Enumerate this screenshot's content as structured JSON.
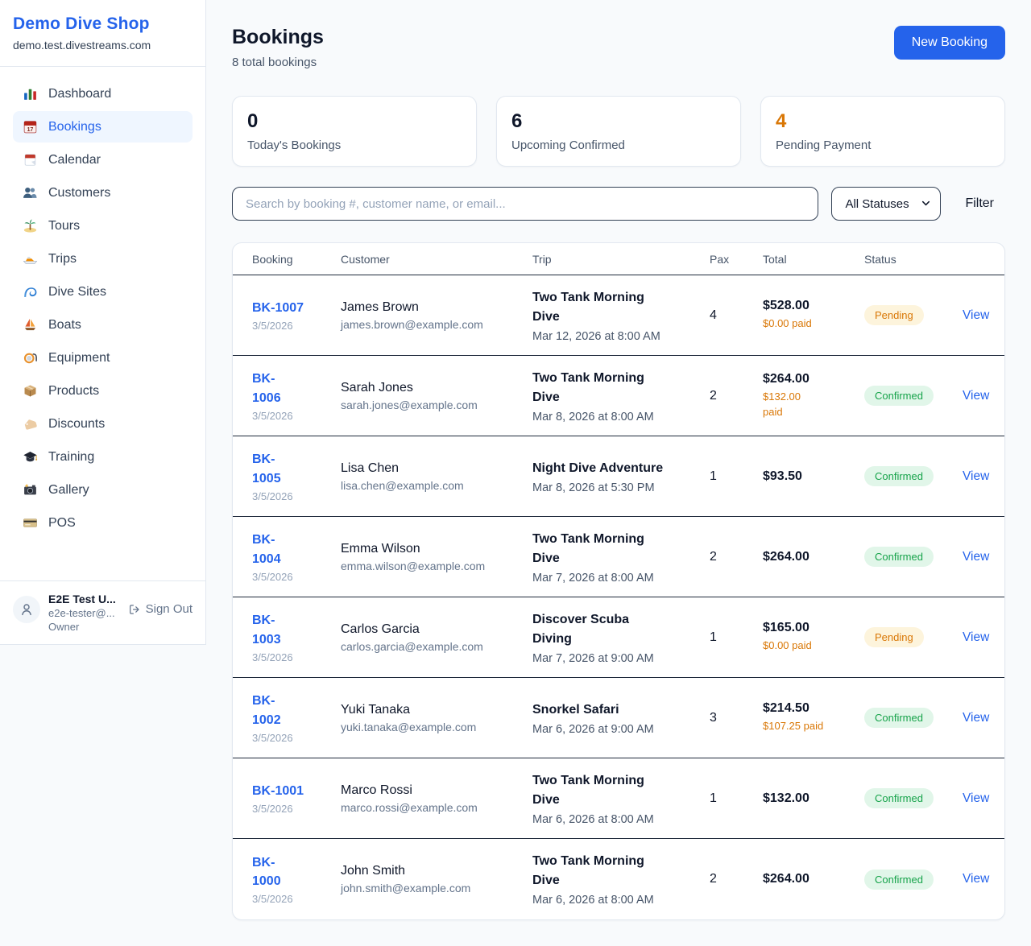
{
  "sidebar": {
    "shop_name": "Demo Dive Shop",
    "shop_domain": "demo.test.divestreams.com",
    "items": [
      {
        "key": "dashboard",
        "label": "Dashboard",
        "icon": "bar-chart-icon",
        "active": false
      },
      {
        "key": "bookings",
        "label": "Bookings",
        "icon": "bookings-calendar-icon",
        "active": true
      },
      {
        "key": "calendar",
        "label": "Calendar",
        "icon": "calendar-icon",
        "active": false
      },
      {
        "key": "customers",
        "label": "Customers",
        "icon": "people-icon",
        "active": false
      },
      {
        "key": "tours",
        "label": "Tours",
        "icon": "island-icon",
        "active": false
      },
      {
        "key": "trips",
        "label": "Trips",
        "icon": "speedboat-icon",
        "active": false
      },
      {
        "key": "dive-sites",
        "label": "Dive Sites",
        "icon": "wave-icon",
        "active": false
      },
      {
        "key": "boats",
        "label": "Boats",
        "icon": "sailboat-icon",
        "active": false
      },
      {
        "key": "equipment",
        "label": "Equipment",
        "icon": "diving-mask-icon",
        "active": false
      },
      {
        "key": "products",
        "label": "Products",
        "icon": "package-icon",
        "active": false
      },
      {
        "key": "discounts",
        "label": "Discounts",
        "icon": "tag-icon",
        "active": false
      },
      {
        "key": "training",
        "label": "Training",
        "icon": "graduation-cap-icon",
        "active": false
      },
      {
        "key": "gallery",
        "label": "Gallery",
        "icon": "camera-icon",
        "active": false
      },
      {
        "key": "pos",
        "label": "POS",
        "icon": "credit-card-icon",
        "active": false
      }
    ],
    "user": {
      "name": "E2E Test U...",
      "email": "e2e-tester@...",
      "role": "Owner",
      "sign_out_label": "Sign Out"
    }
  },
  "header": {
    "title": "Bookings",
    "subtitle": "8 total bookings",
    "new_booking_label": "New Booking"
  },
  "stats": [
    {
      "value": "0",
      "label": "Today's Bookings",
      "color": "#0f172a"
    },
    {
      "value": "6",
      "label": "Upcoming Confirmed",
      "color": "#0f172a"
    },
    {
      "value": "4",
      "label": "Pending Payment",
      "color": "#d97706"
    }
  ],
  "filters": {
    "search_placeholder": "Search by booking #, customer name, or email...",
    "status_selected": "All Statuses",
    "filter_label": "Filter"
  },
  "table": {
    "columns": [
      "Booking",
      "Customer",
      "Trip",
      "Pax",
      "Total",
      "Status"
    ],
    "view_label": "View",
    "rows": [
      {
        "id": "BK-1007",
        "id_wrapped": false,
        "date": "3/5/2026",
        "customer": "James Brown",
        "email": "james.brown@example.com",
        "trip": "Two Tank Morning Dive",
        "trip_datetime": "Mar 12, 2026 at 8:00 AM",
        "pax": "4",
        "total": "$528.00",
        "paid": "$0.00 paid",
        "paid_wrapped": false,
        "status": "Pending"
      },
      {
        "id": "BK-1006",
        "id_wrapped": true,
        "date": "3/5/2026",
        "customer": "Sarah Jones",
        "email": "sarah.jones@example.com",
        "trip": "Two Tank Morning Dive",
        "trip_datetime": "Mar 8, 2026 at 8:00 AM",
        "pax": "2",
        "total": "$264.00",
        "paid": "$132.00 paid",
        "paid_wrapped": true,
        "status": "Confirmed"
      },
      {
        "id": "BK-1005",
        "id_wrapped": true,
        "date": "3/5/2026",
        "customer": "Lisa Chen",
        "email": "lisa.chen@example.com",
        "trip": "Night Dive Adventure",
        "trip_datetime": "Mar 8, 2026 at 5:30 PM",
        "pax": "1",
        "total": "$93.50",
        "paid": "",
        "paid_wrapped": false,
        "status": "Confirmed"
      },
      {
        "id": "BK-1004",
        "id_wrapped": true,
        "date": "3/5/2026",
        "customer": "Emma Wilson",
        "email": "emma.wilson@example.com",
        "trip": "Two Tank Morning Dive",
        "trip_datetime": "Mar 7, 2026 at 8:00 AM",
        "pax": "2",
        "total": "$264.00",
        "paid": "",
        "paid_wrapped": false,
        "status": "Confirmed"
      },
      {
        "id": "BK-1003",
        "id_wrapped": true,
        "date": "3/5/2026",
        "customer": "Carlos Garcia",
        "email": "carlos.garcia@example.com",
        "trip": "Discover Scuba Diving",
        "trip_datetime": "Mar 7, 2026 at 9:00 AM",
        "pax": "1",
        "total": "$165.00",
        "paid": "$0.00 paid",
        "paid_wrapped": false,
        "status": "Pending"
      },
      {
        "id": "BK-1002",
        "id_wrapped": true,
        "date": "3/5/2026",
        "customer": "Yuki Tanaka",
        "email": "yuki.tanaka@example.com",
        "trip": "Snorkel Safari",
        "trip_datetime": "Mar 6, 2026 at 9:00 AM",
        "pax": "3",
        "total": "$214.50",
        "paid": "$107.25 paid",
        "paid_wrapped": false,
        "status": "Confirmed"
      },
      {
        "id": "BK-1001",
        "id_wrapped": false,
        "date": "3/5/2026",
        "customer": "Marco Rossi",
        "email": "marco.rossi@example.com",
        "trip": "Two Tank Morning Dive",
        "trip_datetime": "Mar 6, 2026 at 8:00 AM",
        "pax": "1",
        "total": "$132.00",
        "paid": "",
        "paid_wrapped": false,
        "status": "Confirmed"
      },
      {
        "id": "BK-1000",
        "id_wrapped": true,
        "date": "3/5/2026",
        "customer": "John Smith",
        "email": "john.smith@example.com",
        "trip": "Two Tank Morning Dive",
        "trip_datetime": "Mar 6, 2026 at 8:00 AM",
        "pax": "2",
        "total": "$264.00",
        "paid": "",
        "paid_wrapped": false,
        "status": "Confirmed"
      }
    ]
  },
  "colors": {
    "accent_blue": "#2563eb",
    "pending_text": "#d97706",
    "pending_bg": "#fdf4dc",
    "confirmed_text": "#16a34a",
    "confirmed_bg": "#e1f6e9",
    "page_bg": "#f8fafc",
    "row_divider": "#1e293b"
  }
}
